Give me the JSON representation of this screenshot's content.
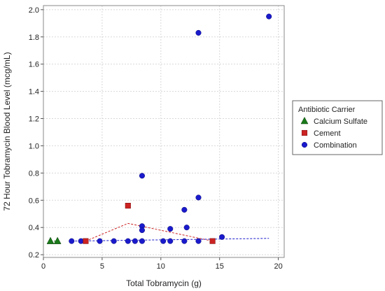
{
  "chart_data": {
    "type": "scatter",
    "title": "",
    "xlabel": "Total Tobramycin (g)",
    "ylabel": "72 Hour Tobramycin Blood Level (mcg/mL)",
    "xlim": [
      0,
      20.5
    ],
    "ylim": [
      0.18,
      2.03
    ],
    "xticks": [
      0,
      5,
      10,
      15,
      20
    ],
    "yticks": [
      0.2,
      0.4,
      0.6,
      0.8,
      1.0,
      1.2,
      1.4,
      1.6,
      1.8,
      2.0
    ],
    "ytick_labels": [
      "0.2",
      "0.4",
      "0.6",
      "0.8",
      "1.0",
      "1.2",
      "1.4",
      "1.6",
      "1.8",
      "2.0"
    ],
    "grid": true,
    "legend": {
      "title": "Antibiotic Carrier",
      "placement": "right"
    },
    "series": [
      {
        "name": "Calcium Sulfate",
        "marker": "triangle",
        "color": "#1a7a1a",
        "points": [
          [
            0.6,
            0.3
          ],
          [
            1.2,
            0.3
          ]
        ],
        "trend": [
          [
            0.6,
            0.3
          ],
          [
            1.2,
            0.3
          ]
        ]
      },
      {
        "name": "Cement",
        "marker": "square",
        "color": "#cc2222",
        "points": [
          [
            3.6,
            0.3
          ],
          [
            7.2,
            0.56
          ],
          [
            14.4,
            0.3
          ]
        ],
        "trend": [
          [
            3.6,
            0.3
          ],
          [
            7.2,
            0.43
          ],
          [
            14.4,
            0.3
          ]
        ]
      },
      {
        "name": "Combination",
        "marker": "circle",
        "color": "#1a1acc",
        "points": [
          [
            2.4,
            0.3
          ],
          [
            3.2,
            0.3
          ],
          [
            4.8,
            0.3
          ],
          [
            6.0,
            0.3
          ],
          [
            7.2,
            0.3
          ],
          [
            7.8,
            0.3
          ],
          [
            8.4,
            0.3
          ],
          [
            8.4,
            0.41
          ],
          [
            8.4,
            0.38
          ],
          [
            8.4,
            0.78
          ],
          [
            10.2,
            0.3
          ],
          [
            10.8,
            0.3
          ],
          [
            10.8,
            0.39
          ],
          [
            12.0,
            0.3
          ],
          [
            12.0,
            0.53
          ],
          [
            12.2,
            0.4
          ],
          [
            13.2,
            0.3
          ],
          [
            13.2,
            0.62
          ],
          [
            13.2,
            1.83
          ],
          [
            15.2,
            0.33
          ],
          [
            19.2,
            1.95
          ]
        ],
        "trend": [
          [
            2.4,
            0.3
          ],
          [
            19.2,
            0.32
          ]
        ]
      }
    ]
  }
}
